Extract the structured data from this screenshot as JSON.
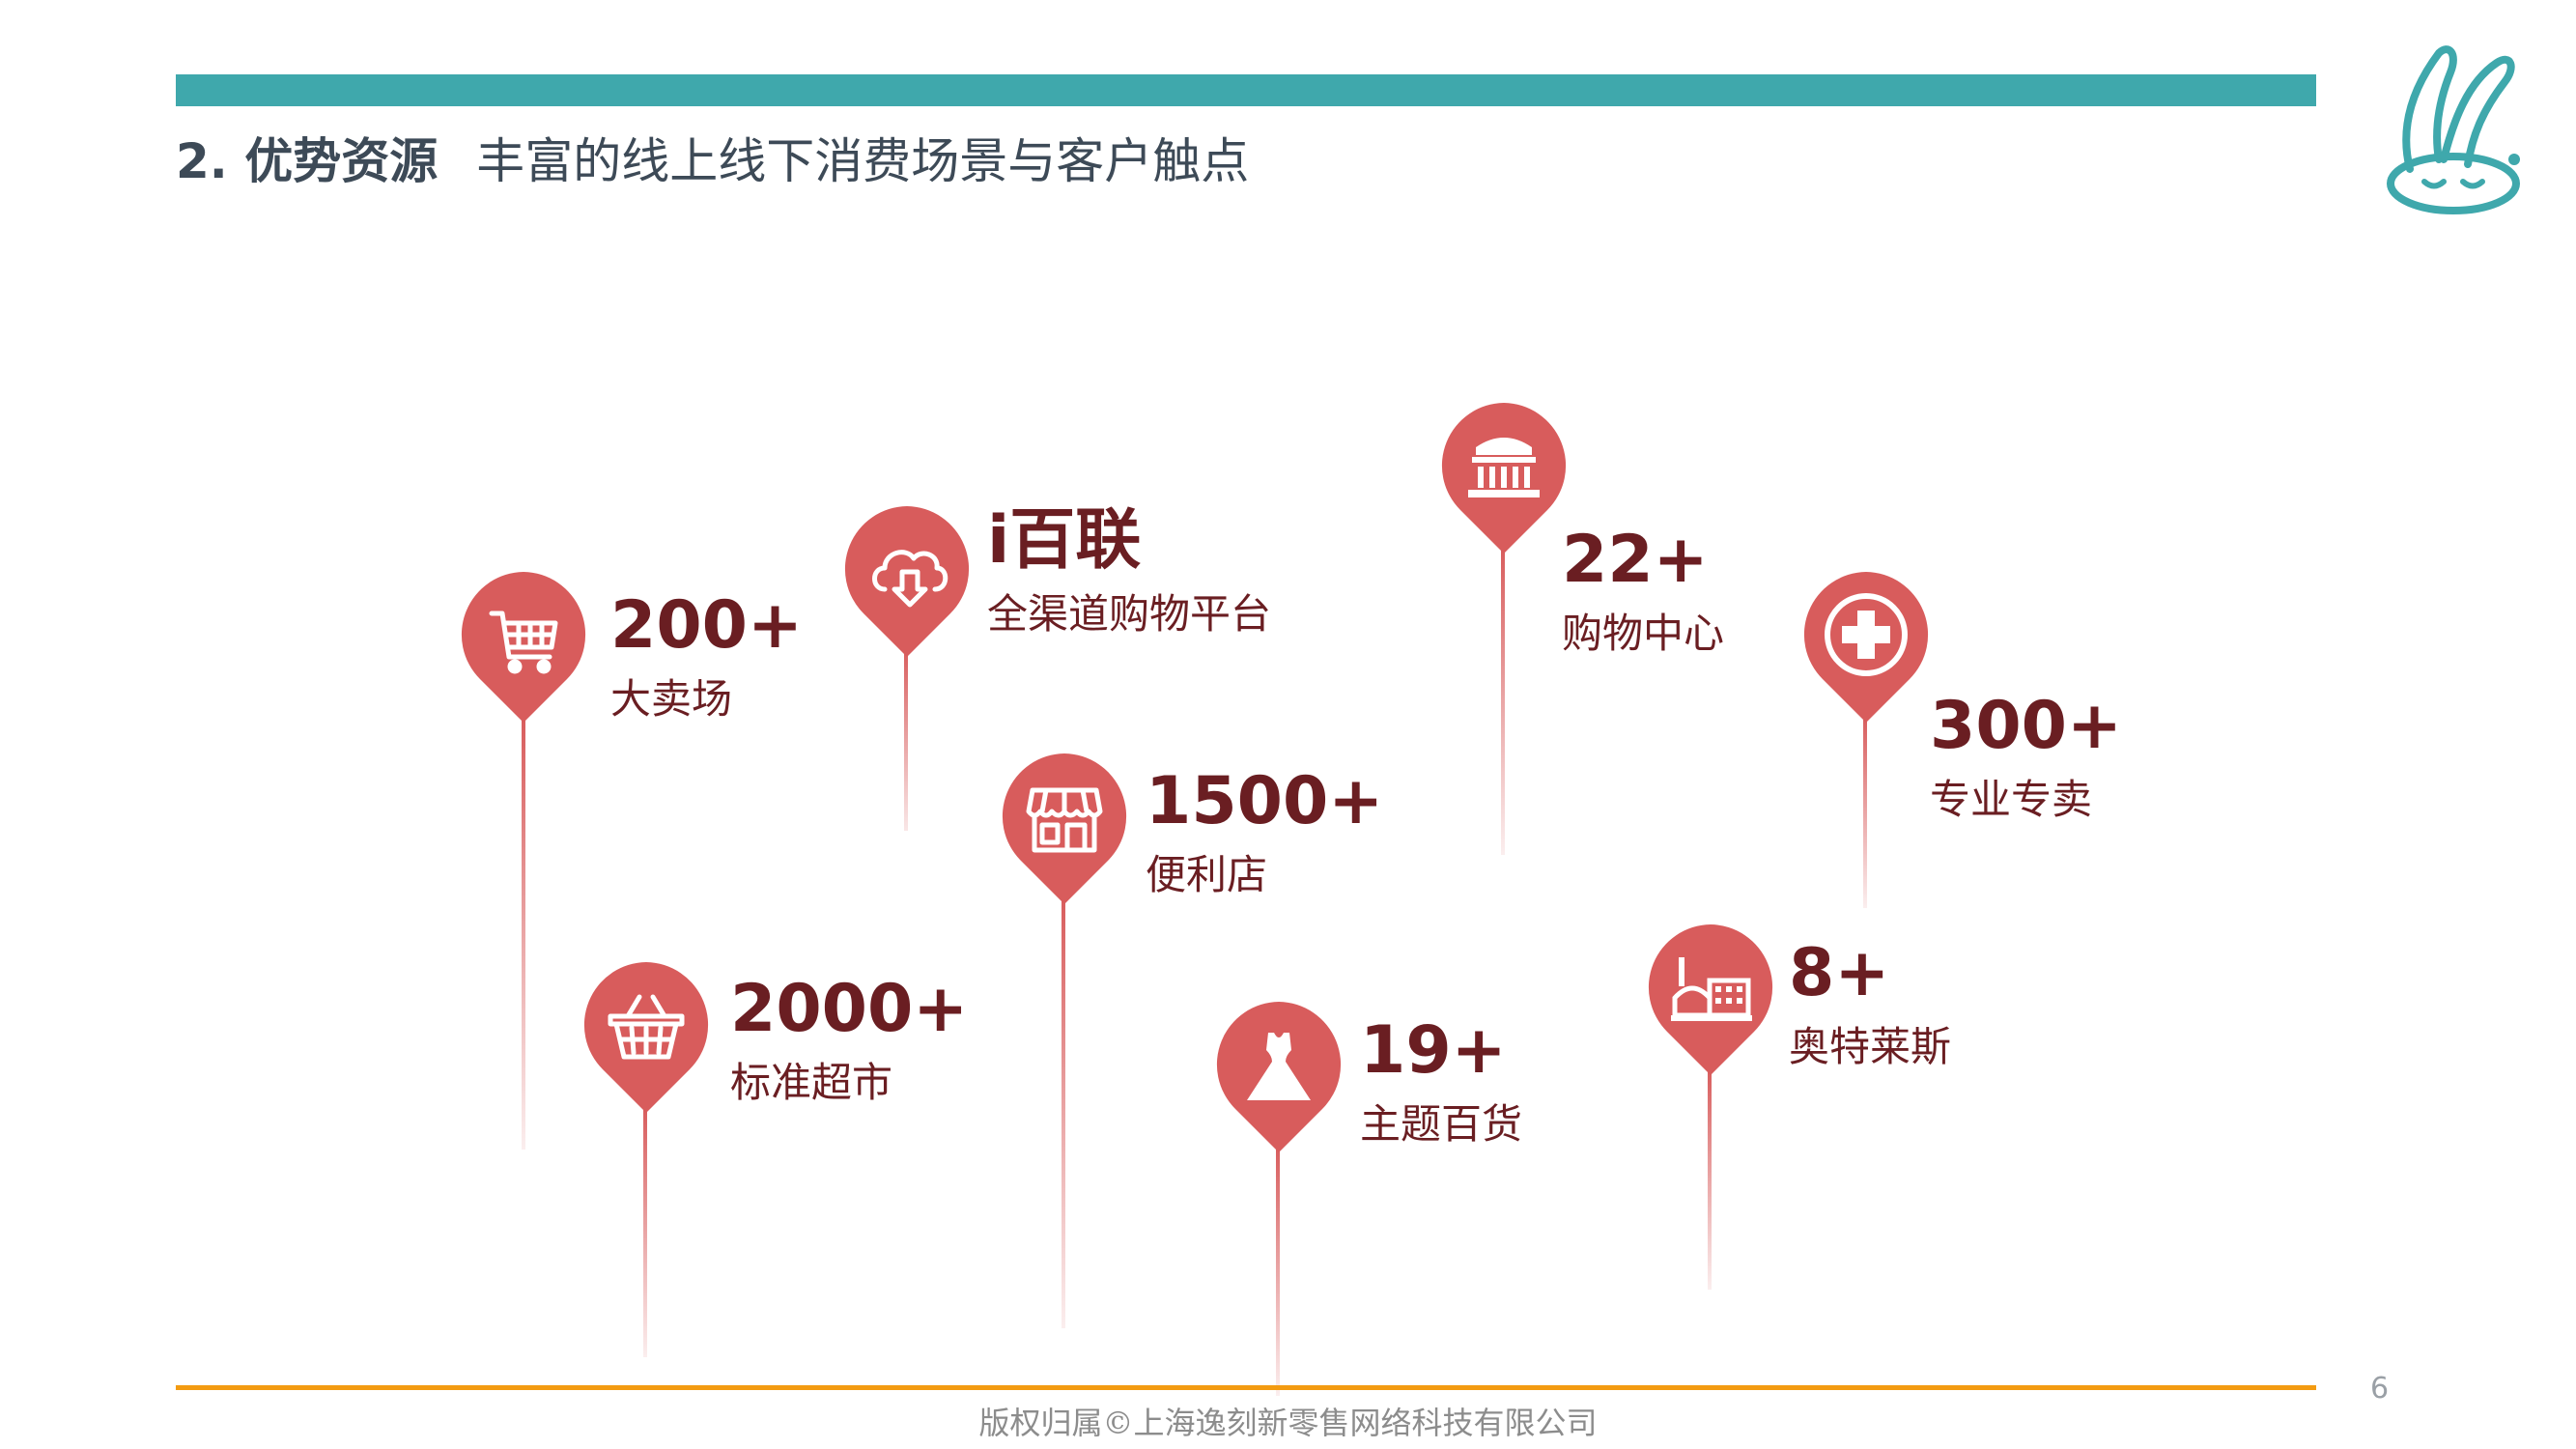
{
  "header": {
    "section_title": "2. 优势资源",
    "subtitle": "丰富的线上线下消费场景与客户触点"
  },
  "colors": {
    "accent_teal": "#3fa8ac",
    "pin_red": "#d85c5c",
    "text_dark_red": "#6a1e22",
    "footer_orange": "#f39b11"
  },
  "resources": [
    {
      "number": "200+",
      "label": "大卖场",
      "icon": "shopping-cart-icon"
    },
    {
      "number": "i百联",
      "label": "全渠道购物平台",
      "icon": "cloud-download-icon"
    },
    {
      "number": "1500+",
      "label": "便利店",
      "icon": "storefront-icon"
    },
    {
      "number": "2000+",
      "label": "标准超市",
      "icon": "shopping-basket-icon"
    },
    {
      "number": "22+",
      "label": "购物中心",
      "icon": "mall-building-icon"
    },
    {
      "number": "19+",
      "label": "主题百货",
      "icon": "dress-icon"
    },
    {
      "number": "300+",
      "label": "专业专卖",
      "icon": "medical-cross-icon"
    },
    {
      "number": "8+",
      "label": "奥特莱斯",
      "icon": "outlet-factory-icon"
    }
  ],
  "footer": {
    "copyright": "版权归属©上海逸刻新零售网络科技有限公司",
    "page_number": "6"
  }
}
